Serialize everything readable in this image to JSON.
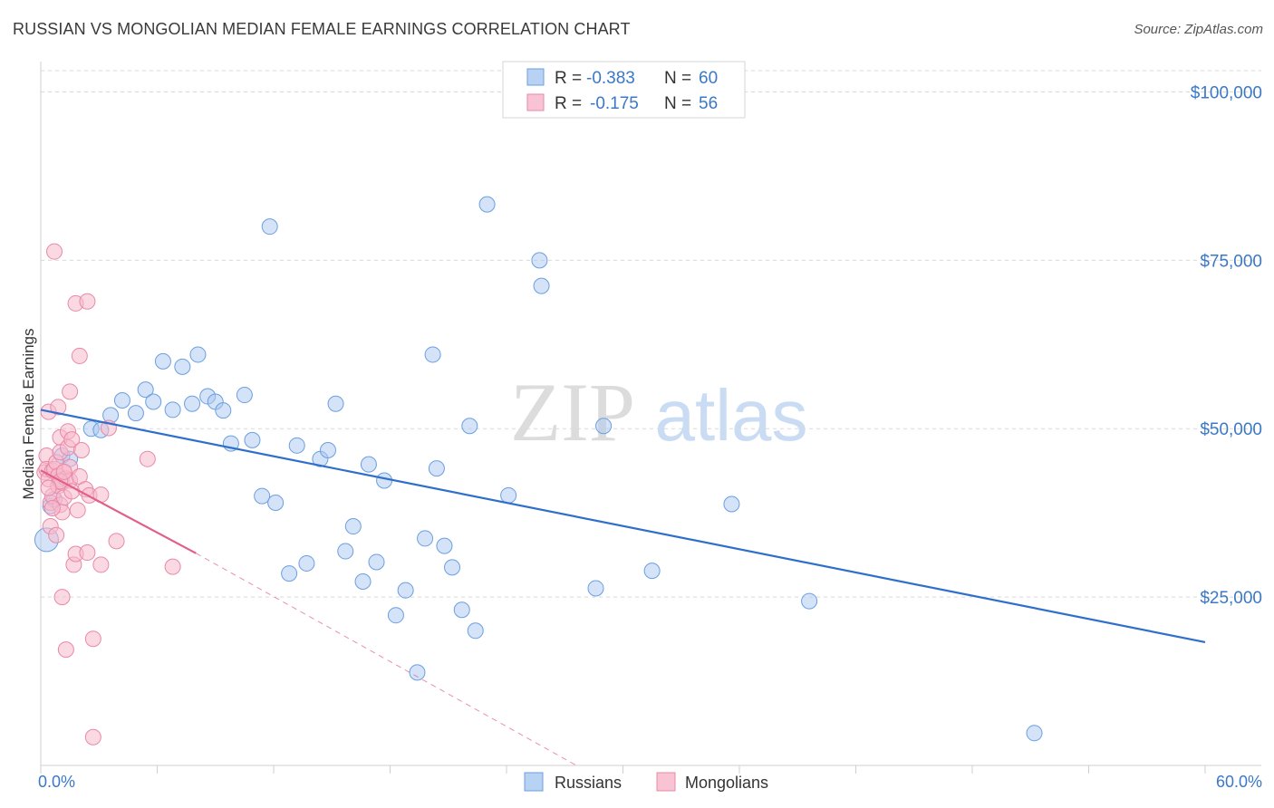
{
  "header": {
    "title": "RUSSIAN VS MONGOLIAN MEDIAN FEMALE EARNINGS CORRELATION CHART",
    "source": "Source: ZipAtlas.com"
  },
  "legend_box": {
    "rows": [
      {
        "r_label": "R =",
        "r_value": "-0.383",
        "n_label": "N =",
        "n_value": "60"
      },
      {
        "r_label": "R =",
        "r_value": "-0.175",
        "n_label": "N =",
        "n_value": "56"
      }
    ]
  },
  "watermark": {
    "zip": "ZIP",
    "atlas": "atlas"
  },
  "colors": {
    "russians_fill": "#a9c8f0",
    "russians_stroke": "#6b9fe0",
    "russians_line": "#2f6fcc",
    "mongolians_fill": "#f7b9cc",
    "mongolians_stroke": "#e889a8",
    "mongolians_line": "#e0608a",
    "grid": "#d9d9d9",
    "axis_text": "#3a78c8"
  },
  "chart_data": {
    "type": "scatter",
    "title": "RUSSIAN VS MONGOLIAN MEDIAN FEMALE EARNINGS CORRELATION CHART",
    "xlabel": "",
    "ylabel": "Median Female Earnings",
    "xlim": [
      0,
      60
    ],
    "ylim": [
      0,
      104500
    ],
    "x_tick_labels": [
      "0.0%",
      "60.0%"
    ],
    "y_ticks": [
      25000,
      50000,
      75000,
      100000
    ],
    "y_tick_labels": [
      "$25,000",
      "$50,000",
      "$75,000",
      "$100,000"
    ],
    "grid": true,
    "legend": [
      "Russians",
      "Mongolians"
    ],
    "series": [
      {
        "name": "Russians",
        "r": -0.383,
        "n": 60,
        "trend": {
          "x": [
            0,
            60
          ],
          "y": [
            52800,
            18300
          ]
        },
        "points": [
          [
            0.3,
            33500
          ],
          [
            0.5,
            38500
          ],
          [
            1.0,
            42500
          ],
          [
            1.1,
            46000
          ],
          [
            1.5,
            45500
          ],
          [
            2.6,
            50000
          ],
          [
            3.1,
            49800
          ],
          [
            3.6,
            52000
          ],
          [
            4.2,
            54200
          ],
          [
            4.9,
            52300
          ],
          [
            5.4,
            55800
          ],
          [
            5.8,
            54000
          ],
          [
            6.3,
            60000
          ],
          [
            6.8,
            52800
          ],
          [
            7.3,
            59200
          ],
          [
            7.8,
            53700
          ],
          [
            8.1,
            61000
          ],
          [
            8.6,
            54800
          ],
          [
            9.0,
            54000
          ],
          [
            9.4,
            52700
          ],
          [
            9.8,
            47800
          ],
          [
            10.5,
            55000
          ],
          [
            10.9,
            48300
          ],
          [
            11.4,
            40000
          ],
          [
            11.8,
            80000
          ],
          [
            12.1,
            39000
          ],
          [
            12.8,
            28500
          ],
          [
            13.2,
            47500
          ],
          [
            13.7,
            30000
          ],
          [
            14.4,
            45500
          ],
          [
            14.8,
            46800
          ],
          [
            15.2,
            53700
          ],
          [
            15.7,
            31800
          ],
          [
            16.1,
            35500
          ],
          [
            16.6,
            27300
          ],
          [
            16.9,
            44700
          ],
          [
            17.3,
            30200
          ],
          [
            17.7,
            42300
          ],
          [
            18.3,
            22300
          ],
          [
            18.8,
            26000
          ],
          [
            19.4,
            13800
          ],
          [
            19.8,
            33700
          ],
          [
            20.2,
            61000
          ],
          [
            20.4,
            44100
          ],
          [
            20.8,
            32600
          ],
          [
            21.2,
            29400
          ],
          [
            21.7,
            23100
          ],
          [
            22.1,
            50400
          ],
          [
            22.4,
            20000
          ],
          [
            23.0,
            83300
          ],
          [
            24.1,
            40100
          ],
          [
            25.7,
            75000
          ],
          [
            25.8,
            71200
          ],
          [
            28.6,
            26300
          ],
          [
            29.0,
            50400
          ],
          [
            31.5,
            28900
          ],
          [
            35.6,
            38800
          ],
          [
            39.6,
            24400
          ],
          [
            51.2,
            4800
          ],
          [
            0.7,
            39500
          ]
        ],
        "large_point_sizes_note": "first point drawn larger"
      },
      {
        "name": "Mongolians",
        "r": -0.175,
        "n": 56,
        "trend": {
          "x": [
            0,
            8
          ],
          "y": [
            43800,
            31500
          ]
        },
        "trend_dashed_extension": {
          "x": [
            8,
            27.6
          ],
          "y": [
            31500,
            0
          ]
        },
        "points": [
          [
            0.2,
            43500
          ],
          [
            0.3,
            46000
          ],
          [
            0.3,
            44000
          ],
          [
            0.4,
            52500
          ],
          [
            0.4,
            42500
          ],
          [
            0.5,
            39000
          ],
          [
            0.5,
            35500
          ],
          [
            0.6,
            43800
          ],
          [
            0.6,
            40000
          ],
          [
            0.7,
            76300
          ],
          [
            0.7,
            44000
          ],
          [
            0.8,
            34200
          ],
          [
            0.8,
            45000
          ],
          [
            0.9,
            53200
          ],
          [
            0.9,
            43000
          ],
          [
            0.9,
            41500
          ],
          [
            1.0,
            48700
          ],
          [
            1.0,
            46500
          ],
          [
            1.0,
            38700
          ],
          [
            1.1,
            37600
          ],
          [
            1.1,
            42000
          ],
          [
            1.1,
            25000
          ],
          [
            1.2,
            43500
          ],
          [
            1.2,
            39800
          ],
          [
            1.3,
            42600
          ],
          [
            1.3,
            17200
          ],
          [
            1.4,
            47200
          ],
          [
            1.4,
            49600
          ],
          [
            1.5,
            55500
          ],
          [
            1.5,
            44300
          ],
          [
            1.5,
            42300
          ],
          [
            1.6,
            40700
          ],
          [
            1.6,
            48400
          ],
          [
            1.7,
            29800
          ],
          [
            1.8,
            68600
          ],
          [
            1.8,
            31400
          ],
          [
            1.9,
            37900
          ],
          [
            2.0,
            42900
          ],
          [
            2.0,
            60800
          ],
          [
            2.1,
            46800
          ],
          [
            2.3,
            41000
          ],
          [
            2.4,
            68900
          ],
          [
            2.4,
            31600
          ],
          [
            2.5,
            40100
          ],
          [
            2.7,
            18800
          ],
          [
            2.7,
            4200
          ],
          [
            3.1,
            29800
          ],
          [
            3.1,
            40200
          ],
          [
            3.5,
            50100
          ],
          [
            3.9,
            33300
          ],
          [
            5.5,
            45500
          ],
          [
            6.8,
            29500
          ],
          [
            1.0,
            42200
          ],
          [
            0.6,
            38200
          ],
          [
            1.2,
            43600
          ],
          [
            0.4,
            41200
          ]
        ]
      }
    ]
  },
  "bottom_legend": {
    "items": [
      {
        "label": "Russians"
      },
      {
        "label": "Mongolians"
      }
    ]
  }
}
